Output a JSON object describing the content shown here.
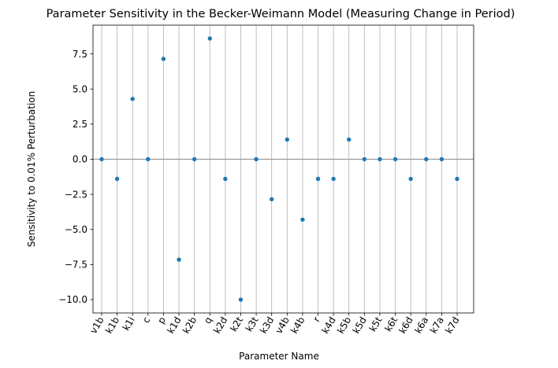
{
  "chart_data": {
    "type": "scatter",
    "title": "Parameter Sensitivity in the Becker-Weimann Model (Measuring Change in Period)",
    "xlabel": "Parameter Name",
    "ylabel": "Sensitivity to 0.01% Perturbation",
    "ylim": [
      -10.95,
      9.55
    ],
    "y_ticks": [
      -10.0,
      -7.5,
      -5.0,
      -2.5,
      0.0,
      2.5,
      5.0,
      7.5
    ],
    "y_tick_labels": [
      "−10.0",
      "−7.5",
      "−5.0",
      "−2.5",
      "0.0",
      "2.5",
      "5.0",
      "7.5"
    ],
    "grid": "vertical",
    "reference_line_y": 0,
    "color": "#1f77b4",
    "categories": [
      "v1b",
      "k1b",
      "k1i",
      "c",
      "p",
      "k1d",
      "k2b",
      "q",
      "k2d",
      "k2t",
      "k3t",
      "k3d",
      "v4b",
      "k4b",
      "r",
      "k4d",
      "k5b",
      "k5d",
      "k5t",
      "k6t",
      "k6d",
      "k6a",
      "k7a",
      "k7d"
    ],
    "values": [
      0.0,
      -1.4,
      4.3,
      0.0,
      7.15,
      -7.15,
      0.0,
      8.6,
      -1.4,
      -10.0,
      0.0,
      -2.85,
      1.4,
      -4.3,
      -1.4,
      -1.4,
      1.4,
      0.0,
      0.0,
      0.0,
      -1.4,
      0.0,
      0.0,
      -1.4
    ]
  }
}
